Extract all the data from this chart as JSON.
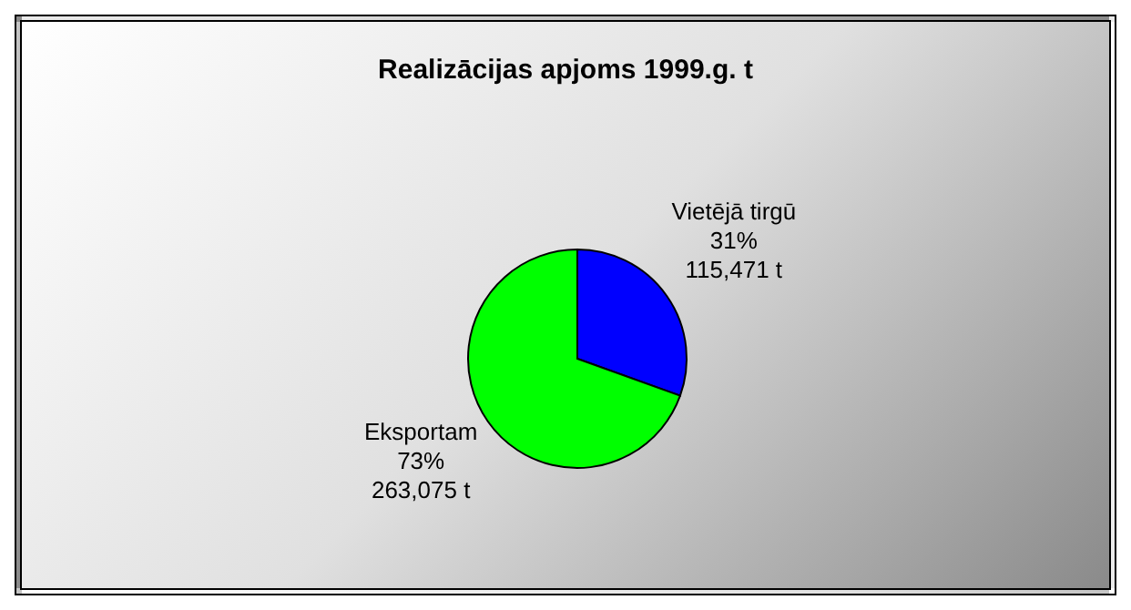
{
  "chart_data": {
    "type": "pie",
    "title": "Realizācijas apjoms 1999.g. t",
    "categories": [
      "Vietējā tirgū",
      "Eksportam"
    ],
    "values": [
      115471,
      263075
    ],
    "colors": [
      "#0000ff",
      "#00ff00"
    ],
    "value_labels": [
      "31%\n115,471 t",
      "73%\n263,075 t"
    ],
    "legend": false
  }
}
